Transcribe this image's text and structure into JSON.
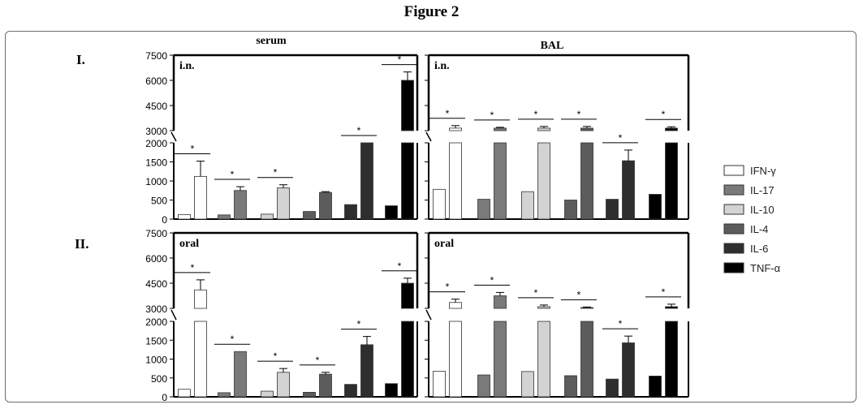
{
  "figure_title": "Figure 2",
  "column_headers": [
    "serum",
    "BAL"
  ],
  "row_labels": [
    "I.",
    "II."
  ],
  "legend": [
    {
      "label": "IFN-γ",
      "color": "#ffffff"
    },
    {
      "label": "IL-17",
      "color": "#7a7a7a"
    },
    {
      "label": "IL-10",
      "color": "#d3d3d3"
    },
    {
      "label": "IL-4",
      "color": "#5c5c5c"
    },
    {
      "label": "IL-6",
      "color": "#2e2e2e"
    },
    {
      "label": "TNF-α",
      "color": "#000000"
    }
  ],
  "chart_data": {
    "type": "bar",
    "y_ticks_lower": [
      0,
      500,
      1000,
      1500,
      2000
    ],
    "y_ticks_upper": [
      3000,
      4500,
      6000,
      7500
    ],
    "ylim_lower": [
      0,
      2000
    ],
    "ylim_upper": [
      3000,
      7500
    ],
    "significance_marker": "*",
    "panels": [
      {
        "name": "serum-in",
        "route": "i.n.",
        "sample": "serum",
        "series": [
          {
            "name": "IFN-γ",
            "control": 120,
            "treated": 1120,
            "treated_err": 400,
            "significant": true
          },
          {
            "name": "IL-17",
            "control": 110,
            "treated": 750,
            "treated_err": 100,
            "significant": true
          },
          {
            "name": "IL-10",
            "control": 130,
            "treated": 820,
            "treated_err": 80,
            "significant": true
          },
          {
            "name": "IL-4",
            "control": 200,
            "treated": 700,
            "treated_err": 20,
            "significant": false
          },
          {
            "name": "IL-6",
            "control": 380,
            "treated": 2000,
            "treated_err": 0,
            "significant": true
          },
          {
            "name": "TNF-α",
            "control": 350,
            "treated": 6000,
            "treated_err": 500,
            "significant": true
          }
        ]
      },
      {
        "name": "bal-in",
        "route": "i.n.",
        "sample": "BAL",
        "series": [
          {
            "name": "IFN-γ",
            "control": 780,
            "treated": 3150,
            "treated_err": 150,
            "significant": true
          },
          {
            "name": "IL-17",
            "control": 520,
            "treated": 3150,
            "treated_err": 50,
            "significant": true
          },
          {
            "name": "IL-10",
            "control": 720,
            "treated": 3150,
            "treated_err": 100,
            "significant": true
          },
          {
            "name": "IL-4",
            "control": 500,
            "treated": 3150,
            "treated_err": 100,
            "significant": true
          },
          {
            "name": "IL-6",
            "control": 520,
            "treated": 1530,
            "treated_err": 280,
            "significant": true
          },
          {
            "name": "TNF-α",
            "control": 650,
            "treated": 3150,
            "treated_err": 80,
            "significant": true
          }
        ]
      },
      {
        "name": "serum-oral",
        "route": "oral",
        "sample": "serum",
        "series": [
          {
            "name": "IFN-γ",
            "control": 200,
            "treated": 4100,
            "treated_err": 600,
            "significant": true
          },
          {
            "name": "IL-17",
            "control": 110,
            "treated": 1200,
            "treated_err": 0,
            "significant": true
          },
          {
            "name": "IL-10",
            "control": 150,
            "treated": 650,
            "treated_err": 100,
            "significant": true
          },
          {
            "name": "IL-4",
            "control": 120,
            "treated": 600,
            "treated_err": 50,
            "significant": true
          },
          {
            "name": "IL-6",
            "control": 330,
            "treated": 1380,
            "treated_err": 220,
            "significant": true
          },
          {
            "name": "TNF-α",
            "control": 350,
            "treated": 4500,
            "treated_err": 300,
            "significant": true
          }
        ]
      },
      {
        "name": "bal-oral",
        "route": "oral",
        "sample": "BAL",
        "series": [
          {
            "name": "IFN-γ",
            "control": 680,
            "treated": 3350,
            "treated_err": 200,
            "significant": true
          },
          {
            "name": "IL-17",
            "control": 580,
            "treated": 3750,
            "treated_err": 200,
            "significant": true
          },
          {
            "name": "IL-10",
            "control": 670,
            "treated": 3100,
            "treated_err": 100,
            "significant": true
          },
          {
            "name": "IL-4",
            "control": 560,
            "treated": 3050,
            "treated_err": 30,
            "significant": true
          },
          {
            "name": "IL-6",
            "control": 470,
            "treated": 1430,
            "treated_err": 180,
            "significant": true
          },
          {
            "name": "TNF-α",
            "control": 550,
            "treated": 3100,
            "treated_err": 150,
            "significant": true
          }
        ]
      }
    ]
  }
}
